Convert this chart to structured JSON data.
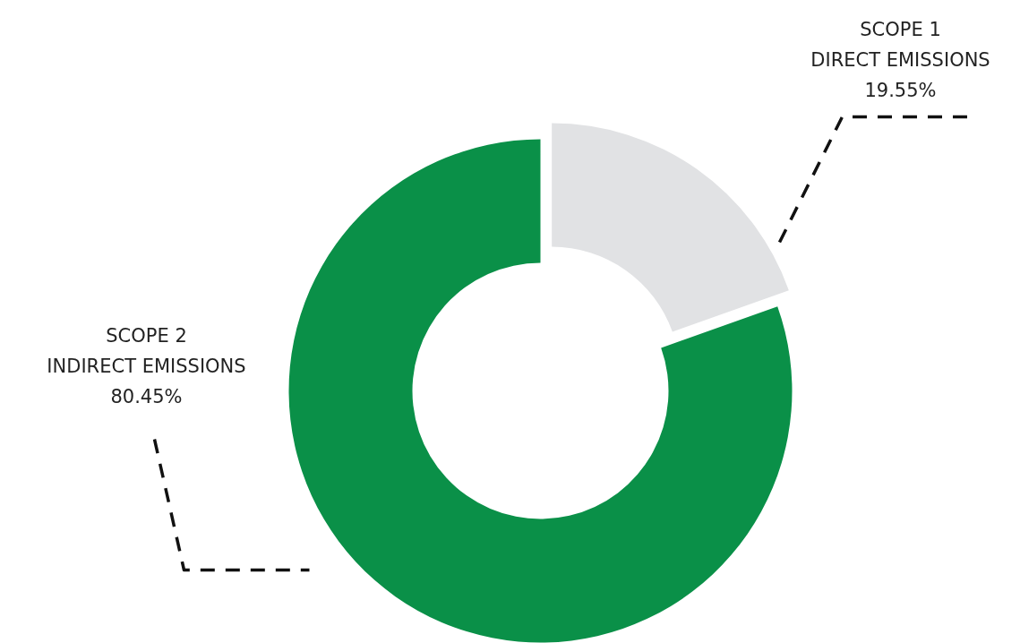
{
  "chart_data": {
    "type": "donut",
    "categories": [
      "SCOPE 1\nDIRECT EMISSIONS",
      "SCOPE 2\nINDIRECT EMISSIONS"
    ],
    "values": [
      19.55,
      80.45
    ],
    "colors": [
      "#e1e2e4",
      "#0a9048"
    ],
    "value_labels": [
      "19.55%",
      "80.45%"
    ]
  }
}
